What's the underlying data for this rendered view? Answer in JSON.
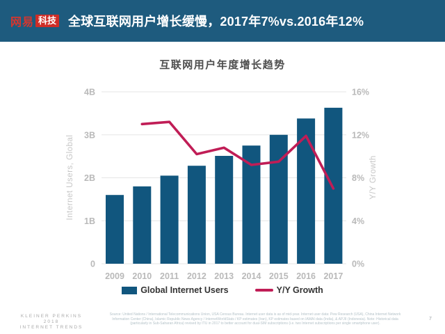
{
  "header": {
    "logo_primary": "网易",
    "logo_badge": "科技",
    "title": "全球互联网用户增长缓慢，2017年7%vs.2016年12%"
  },
  "colors": {
    "header_bg": "#1e5b7e",
    "logo_red": "#cf2d27",
    "bar": "#11567e",
    "line": "#c01d56",
    "grid": "#e6e6e6",
    "tick_label": "#b9b9b9",
    "axis_title": "#c6c6c6",
    "chart_title": "#4d4d4d",
    "legend_text": "#333333"
  },
  "chart_data": {
    "type": "bar",
    "subtype": "bar+line combo, dual axis",
    "title": "互联网用户年度增长趋势",
    "categories": [
      "2009",
      "2010",
      "2011",
      "2012",
      "2013",
      "2014",
      "2015",
      "2016",
      "2017"
    ],
    "series": [
      {
        "name": "Global Internet Users",
        "type": "bar",
        "axis": "left",
        "unit": "B",
        "values": [
          1.6,
          1.8,
          2.05,
          2.28,
          2.51,
          2.75,
          3.0,
          3.38,
          3.63
        ]
      },
      {
        "name": "Y/Y Growth",
        "type": "line",
        "axis": "right",
        "unit": "%",
        "values": [
          null,
          13.0,
          13.2,
          10.2,
          10.8,
          9.2,
          9.5,
          11.9,
          7.0
        ]
      }
    ],
    "left_axis": {
      "title": "Internet Users, Global",
      "ticks": [
        "0",
        "1B",
        "2B",
        "3B",
        "4B"
      ],
      "min": 0,
      "max": 4
    },
    "right_axis": {
      "title": "Y/Y Growth",
      "ticks": [
        "0%",
        "4%",
        "8%",
        "12%",
        "16%"
      ],
      "min": 0,
      "max": 16
    },
    "grid": true,
    "legend_position": "bottom"
  },
  "footer": {
    "brand_line1": "KLEINER PERKINS",
    "brand_line2": "2018",
    "brand_line3": "INTERNET TRENDS",
    "source": "Source: United Nations / International Telecommunications Union, USA Census Bureau. Internet user data is as of mid-year. Internet user data: Pew Research (USA), China Internet Network Information Center (China), Islamic Republic News Agency / InternetWorldStats / KP estimates (Iran), KP estimates based on IAMAI data (India), & APJII (Indonesia). Note: Historical data (particularly in Sub-Saharan Africa) revised by ITU in 2017 to better account for dual-SIM subscriptions (i.e. two Internet subscriptions per single smartphone user).",
    "page_number": "7"
  }
}
